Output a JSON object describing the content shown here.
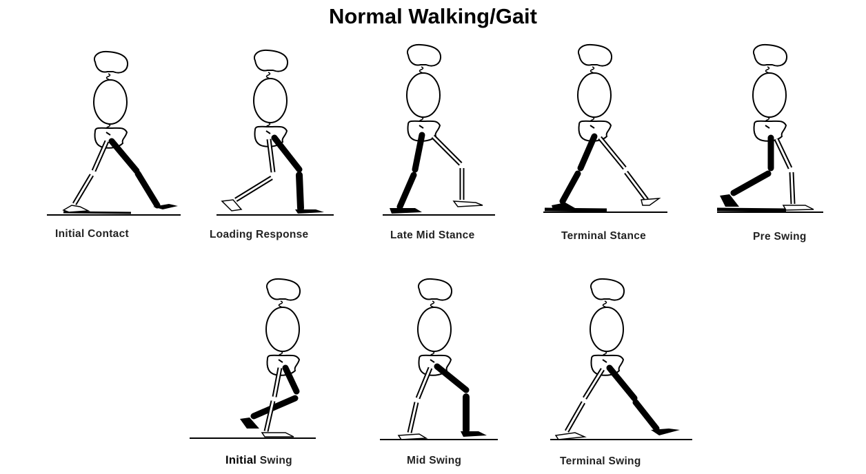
{
  "title": "Normal Walking/Gait",
  "colors": {
    "ink": "#000000",
    "paper": "#ffffff",
    "label": "#222222"
  },
  "phases": [
    {
      "id": "initial-contact",
      "label": "Initial Contact"
    },
    {
      "id": "loading-response",
      "label": "Loading Response"
    },
    {
      "id": "late-mid-stance",
      "label": "Late Mid Stance"
    },
    {
      "id": "terminal-stance",
      "label": "Terminal Stance"
    },
    {
      "id": "pre-swing",
      "label": "Pre Swing"
    },
    {
      "id": "initial-swing",
      "label_first": "Initial",
      "label_rest": "Swing"
    },
    {
      "id": "mid-swing",
      "label": "Mid Swing"
    },
    {
      "id": "terminal-swing",
      "label": "Terminal Swing"
    }
  ]
}
